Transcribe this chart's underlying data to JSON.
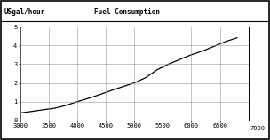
{
  "title_left": "USgal/hour",
  "title_center": "Fuel Consumption",
  "xlim": [
    3000,
    7000
  ],
  "ylim": [
    0,
    5
  ],
  "xticks": [
    3000,
    3500,
    4000,
    4500,
    5000,
    5500,
    6000,
    6500
  ],
  "yticks": [
    0,
    1,
    2,
    3,
    4,
    5
  ],
  "x_label_extra": "7000",
  "curve_x": [
    3000,
    3200,
    3400,
    3600,
    3800,
    4000,
    4200,
    4400,
    4600,
    4800,
    5000,
    5200,
    5400,
    5600,
    5800,
    6000,
    6200,
    6400,
    6600,
    6800
  ],
  "curve_y": [
    0.4,
    0.48,
    0.57,
    0.65,
    0.8,
    1.0,
    1.18,
    1.38,
    1.6,
    1.8,
    2.0,
    2.28,
    2.7,
    3.0,
    3.25,
    3.5,
    3.7,
    3.95,
    4.2,
    4.4
  ],
  "line_color": "#000000",
  "bg_color": "#ffffff",
  "grid_color": "#999999",
  "title_fontsize": 5.5,
  "tick_fontsize": 5.0
}
